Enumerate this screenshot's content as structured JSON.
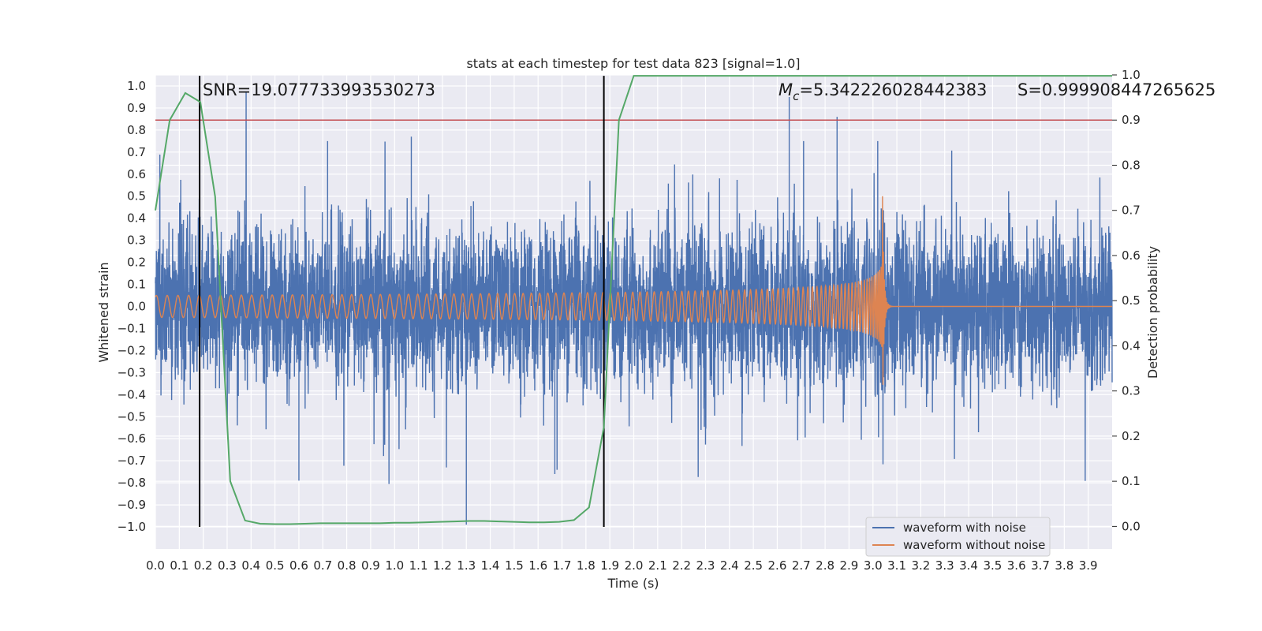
{
  "chart_data": {
    "type": "line",
    "title": "stats at each timestep for test data 823 [signal=1.0]",
    "xlabel": "Time (s)",
    "ylabel": "Whitened strain",
    "y2label": "Detection probability",
    "xlim": [
      0.0,
      4.0
    ],
    "ylim": [
      -1.1,
      1.05
    ],
    "y2lim": [
      -0.05,
      1.0
    ],
    "x_ticks": [
      0.0,
      0.1,
      0.2,
      0.3,
      0.4,
      0.5,
      0.6,
      0.7,
      0.8,
      0.9,
      1.0,
      1.1,
      1.2,
      1.3,
      1.4,
      1.5,
      1.6,
      1.7,
      1.8,
      1.9,
      2.0,
      2.1,
      2.2,
      2.3,
      2.4,
      2.5,
      2.6,
      2.7,
      2.8,
      2.9,
      3.0,
      3.1,
      3.2,
      3.3,
      3.4,
      3.5,
      3.6,
      3.7,
      3.8,
      3.9
    ],
    "x_tick_labels": [
      "0.0",
      "0.1",
      "0.2",
      "0.3",
      "0.4",
      "0.5",
      "0.6",
      "0.7",
      "0.8",
      "0.9",
      "1.0",
      "1.1",
      "1.2",
      "1.3",
      "1.4",
      "1.5",
      "1.6",
      "1.7",
      "1.8",
      "1.9",
      "2.0",
      "2.1",
      "2.2",
      "2.3",
      "2.4",
      "2.5",
      "2.6",
      "2.7",
      "2.8",
      "2.9",
      "3.0",
      "3.1",
      "3.2",
      "3.3",
      "3.4",
      "3.5",
      "3.6",
      "3.7",
      "3.8",
      "3.9"
    ],
    "y_ticks": [
      -1.0,
      -0.9,
      -0.8,
      -0.7,
      -0.6,
      -0.5,
      -0.4,
      -0.3,
      -0.2,
      -0.1,
      0.0,
      0.1,
      0.2,
      0.3,
      0.4,
      0.5,
      0.6,
      0.7,
      0.8,
      0.9,
      1.0
    ],
    "y_tick_labels": [
      "−1.0",
      "−0.9",
      "−0.8",
      "−0.7",
      "−0.6",
      "−0.5",
      "−0.4",
      "−0.3",
      "−0.2",
      "−0.1",
      "0.0",
      "0.1",
      "0.2",
      "0.3",
      "0.4",
      "0.5",
      "0.6",
      "0.7",
      "0.8",
      "0.9",
      "1.0"
    ],
    "y2_ticks": [
      0.0,
      0.1,
      0.2,
      0.3,
      0.4,
      0.5,
      0.6,
      0.7,
      0.8,
      0.9,
      1.0
    ],
    "y2_tick_labels": [
      "0.0",
      "0.1",
      "0.2",
      "0.3",
      "0.4",
      "0.5",
      "0.6",
      "0.7",
      "0.8",
      "0.9",
      "1.0"
    ],
    "grid": true,
    "legend_position": "lower-right",
    "series": [
      {
        "name": "waveform with noise",
        "color": "#4c72b0",
        "axis": "left",
        "noise_envelope_typical": 0.3,
        "noise_peak_extremes": [
          {
            "x": 0.72,
            "y": 0.75
          },
          {
            "x": 1.07,
            "y": 0.77
          },
          {
            "x": 1.3,
            "y": -0.99
          },
          {
            "x": 2.65,
            "y": 0.95
          },
          {
            "x": 2.71,
            "y": 0.75
          },
          {
            "x": 2.85,
            "y": 0.86
          },
          {
            "x": 3.02,
            "y": 0.75
          },
          {
            "x": 0.6,
            "y": -0.79
          },
          {
            "x": 1.67,
            "y": -0.76
          }
        ]
      },
      {
        "name": "waveform without noise",
        "color": "#dd8452",
        "axis": "left",
        "chirp_start_amplitude": 0.05,
        "chirp_peak_amplitude": 0.5,
        "merger_time": 3.04,
        "start_cycles_per_second": 22
      },
      {
        "name": "",
        "color": "#55a868",
        "axis": "right",
        "x": [
          0.0,
          0.06,
          0.125,
          0.188,
          0.25,
          0.313,
          0.375,
          0.438,
          0.5,
          0.563,
          0.625,
          0.688,
          0.75,
          0.813,
          0.875,
          0.938,
          1.0,
          1.063,
          1.125,
          1.188,
          1.25,
          1.313,
          1.375,
          1.438,
          1.5,
          1.563,
          1.625,
          1.688,
          1.75,
          1.813,
          1.875,
          1.938,
          2.0,
          2.5,
          3.0,
          3.5,
          4.0
        ],
        "values": [
          0.7,
          0.9,
          0.96,
          0.94,
          0.73,
          0.1,
          0.013,
          0.006,
          0.005,
          0.005,
          0.006,
          0.007,
          0.007,
          0.007,
          0.007,
          0.007,
          0.008,
          0.008,
          0.009,
          0.01,
          0.011,
          0.012,
          0.012,
          0.011,
          0.01,
          0.009,
          0.009,
          0.01,
          0.014,
          0.042,
          0.22,
          0.9,
          0.998,
          0.998,
          0.998,
          0.998,
          0.998
        ]
      }
    ],
    "reference_lines": [
      {
        "type": "hline",
        "axis": "right",
        "value": 0.9,
        "color": "#c44e52"
      },
      {
        "type": "vline",
        "axis": "left",
        "value": 0.185,
        "color": "#000000"
      },
      {
        "type": "vline",
        "axis": "left",
        "value": 1.875,
        "color": "#000000"
      }
    ],
    "annotations": {
      "snr": "SNR=19.077733993530273",
      "mc_symbol": "M",
      "mc_subscript": "c",
      "mc_value": "=5.342226028442383",
      "score": "S=0.999908447265625"
    }
  }
}
